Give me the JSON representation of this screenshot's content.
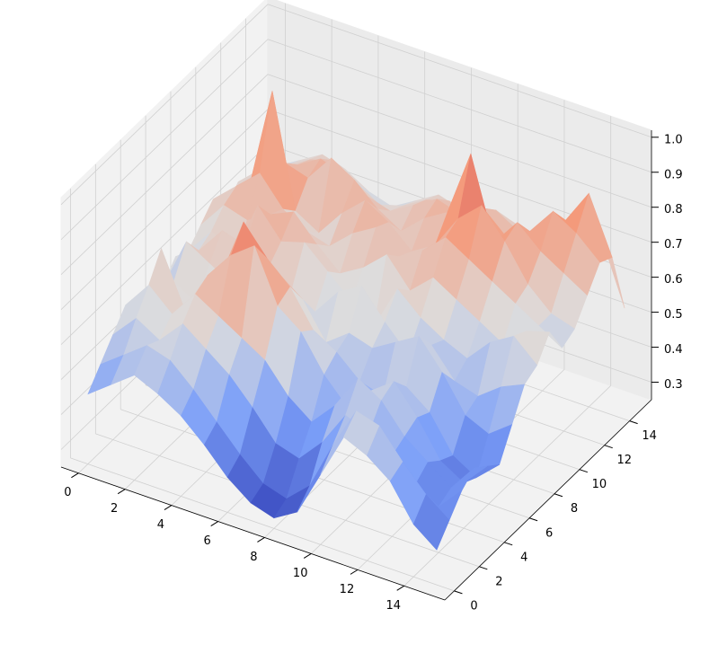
{
  "chart_data": {
    "type": "surface",
    "cmap": "coolwarm",
    "x": [
      0,
      1,
      2,
      3,
      4,
      5,
      6,
      7,
      8,
      9,
      10,
      11,
      12,
      13,
      14,
      15
    ],
    "y": [
      0,
      1,
      2,
      3,
      4,
      5,
      6,
      7,
      8,
      9,
      10,
      11,
      12,
      13,
      14,
      15
    ],
    "z": [
      [
        0.45,
        0.5,
        0.55,
        0.52,
        0.48,
        0.42,
        0.35,
        0.3,
        0.28,
        0.32,
        0.45,
        0.58,
        0.55,
        0.5,
        0.4,
        0.35
      ],
      [
        0.5,
        0.55,
        0.6,
        0.58,
        0.52,
        0.45,
        0.38,
        0.32,
        0.3,
        0.36,
        0.5,
        0.62,
        0.6,
        0.52,
        0.45,
        0.4
      ],
      [
        0.55,
        0.62,
        0.58,
        0.65,
        0.6,
        0.55,
        0.48,
        0.4,
        0.38,
        0.45,
        0.55,
        0.52,
        0.48,
        0.42,
        0.38,
        0.45
      ],
      [
        0.6,
        0.68,
        0.62,
        0.7,
        0.66,
        0.62,
        0.58,
        0.5,
        0.45,
        0.52,
        0.62,
        0.58,
        0.5,
        0.45,
        0.4,
        0.48
      ],
      [
        0.52,
        0.75,
        0.6,
        0.72,
        0.8,
        0.85,
        0.7,
        0.65,
        0.55,
        0.48,
        0.55,
        0.6,
        0.52,
        0.42,
        0.38,
        0.45
      ],
      [
        0.48,
        0.62,
        0.58,
        0.68,
        0.86,
        0.78,
        0.72,
        0.62,
        0.58,
        0.52,
        0.5,
        0.55,
        0.5,
        0.4,
        0.36,
        0.42
      ],
      [
        0.55,
        0.7,
        0.66,
        0.62,
        0.72,
        0.7,
        0.65,
        0.55,
        0.6,
        0.58,
        0.62,
        0.66,
        0.58,
        0.48,
        0.45,
        0.5
      ],
      [
        0.6,
        0.64,
        0.72,
        0.7,
        0.66,
        0.62,
        0.58,
        0.66,
        0.7,
        0.62,
        0.55,
        0.6,
        0.52,
        0.5,
        0.55,
        0.58
      ],
      [
        0.58,
        0.66,
        0.62,
        0.78,
        0.7,
        0.72,
        0.66,
        0.6,
        0.55,
        0.68,
        0.62,
        0.58,
        0.55,
        0.62,
        0.66,
        0.6
      ],
      [
        0.62,
        0.7,
        0.68,
        0.72,
        0.75,
        0.68,
        0.62,
        0.66,
        0.72,
        0.64,
        0.7,
        0.66,
        0.62,
        0.58,
        0.64,
        0.66
      ],
      [
        0.66,
        0.72,
        0.78,
        0.7,
        0.66,
        0.64,
        0.7,
        0.74,
        0.68,
        0.72,
        0.78,
        0.74,
        0.7,
        0.66,
        0.62,
        0.58
      ],
      [
        0.6,
        0.68,
        0.98,
        0.66,
        0.62,
        0.7,
        0.76,
        0.72,
        0.66,
        0.7,
        0.8,
        0.86,
        0.78,
        0.68,
        0.62,
        0.6
      ],
      [
        0.64,
        0.7,
        0.74,
        0.72,
        0.8,
        0.76,
        0.7,
        0.66,
        0.72,
        0.76,
        0.95,
        0.72,
        0.8,
        0.74,
        0.7,
        0.66
      ],
      [
        0.62,
        0.66,
        0.7,
        0.74,
        0.72,
        0.68,
        0.66,
        0.7,
        0.74,
        0.72,
        0.76,
        0.7,
        0.74,
        0.82,
        0.78,
        0.72
      ],
      [
        0.6,
        0.64,
        0.68,
        0.7,
        0.66,
        0.62,
        0.64,
        0.68,
        0.7,
        0.66,
        0.72,
        0.68,
        0.7,
        0.76,
        0.86,
        0.7
      ],
      [
        0.58,
        0.62,
        0.66,
        0.64,
        0.6,
        0.58,
        0.62,
        0.66,
        0.64,
        0.62,
        0.66,
        0.64,
        0.68,
        0.72,
        0.7,
        0.52
      ]
    ],
    "xlim": [
      -0.75,
      15.75
    ],
    "ylim": [
      -0.75,
      15.75
    ],
    "zlim": [
      0.25,
      1.02
    ],
    "xticks": [
      0,
      2,
      4,
      6,
      8,
      10,
      12,
      14
    ],
    "yticks": [
      0,
      2,
      4,
      6,
      8,
      10,
      12,
      14
    ],
    "zticks": [
      0.3,
      0.4,
      0.5,
      0.6,
      0.7,
      0.8,
      0.9,
      {
        "value": 1,
        "label": "1.0"
      }
    ],
    "grid": true
  }
}
